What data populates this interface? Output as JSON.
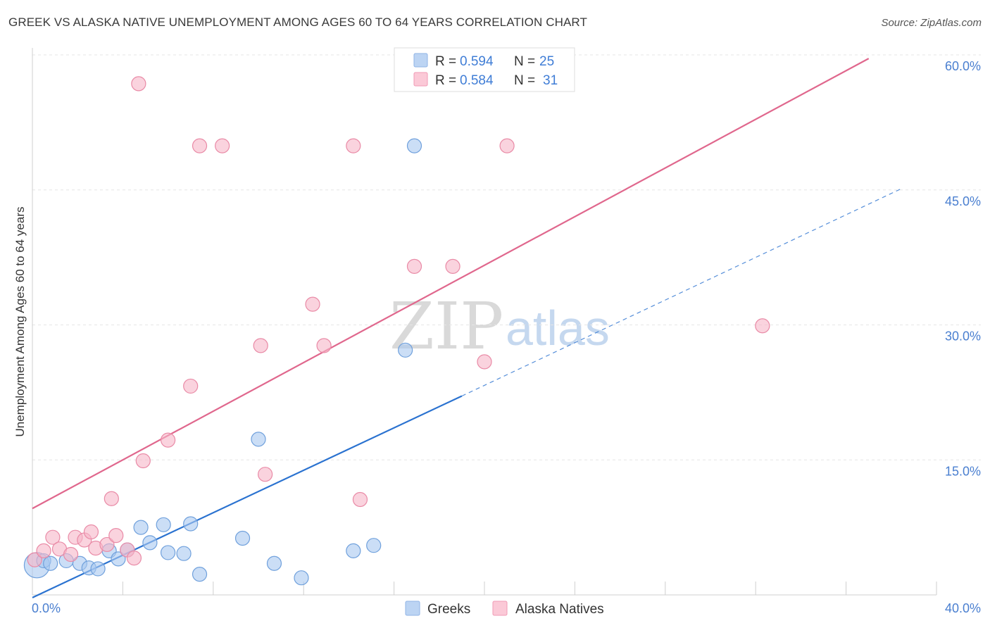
{
  "title": "GREEK VS ALASKA NATIVE UNEMPLOYMENT AMONG AGES 60 TO 64 YEARS CORRELATION CHART",
  "source": "Source: ZipAtlas.com",
  "watermark": {
    "zip": "ZIP",
    "atlas": "atlas"
  },
  "legend": {
    "rows": [
      {
        "r_label": "R =",
        "r_value": "0.594",
        "n_label": "N =",
        "n_value": "25",
        "color": "#a8c8f0"
      },
      {
        "r_label": "R =",
        "r_value": "0.584",
        "n_label": "N =",
        "n_value": "31",
        "color": "#f7b6c8"
      }
    ]
  },
  "bottom_legend": {
    "greeks": "Greeks",
    "alaska": "Alaska Natives"
  },
  "chart_data": {
    "type": "scatter",
    "title": "GREEK VS ALASKA NATIVE UNEMPLOYMENT AMONG AGES 60 TO 64 YEARS CORRELATION CHART",
    "xlabel": "",
    "ylabel": "Unemployment Among Ages 60 to 64 years",
    "xlim": [
      0,
      40
    ],
    "ylim": [
      0,
      60
    ],
    "x_tick_labels": [
      "0.0%",
      "40.0%"
    ],
    "y_ticks": [
      15,
      30,
      45,
      60
    ],
    "y_tick_labels": [
      "15.0%",
      "30.0%",
      "45.0%",
      "60.0%"
    ],
    "series": [
      {
        "name": "Greeks",
        "color": "#a8c8f0",
        "stroke": "#6fa0dc",
        "line_color": "#2a72d0",
        "regression": {
          "x0": 0,
          "y0": -0.3,
          "x1": 19,
          "y1": 22.1,
          "dash_x1": 38.5,
          "dash_y1": 45.2
        },
        "points": [
          [
            0.2,
            3.3,
            18
          ],
          [
            0.5,
            3.8,
            10
          ],
          [
            0.8,
            3.5,
            10
          ],
          [
            1.5,
            3.8,
            10
          ],
          [
            2.1,
            3.5,
            10
          ],
          [
            2.5,
            3.0,
            10
          ],
          [
            2.9,
            2.9,
            10
          ],
          [
            3.4,
            4.9,
            10
          ],
          [
            3.8,
            4.0,
            10
          ],
          [
            4.2,
            5.0,
            10
          ],
          [
            4.8,
            7.5,
            10
          ],
          [
            5.2,
            5.8,
            10
          ],
          [
            5.8,
            7.8,
            10
          ],
          [
            6.0,
            4.7,
            10
          ],
          [
            6.7,
            4.6,
            10
          ],
          [
            7.0,
            7.9,
            10
          ],
          [
            7.4,
            2.3,
            10
          ],
          [
            9.3,
            6.3,
            10
          ],
          [
            10.0,
            17.3,
            10
          ],
          [
            10.7,
            3.5,
            10
          ],
          [
            11.9,
            1.9,
            10
          ],
          [
            14.2,
            4.9,
            10
          ],
          [
            15.1,
            5.5,
            10
          ],
          [
            16.5,
            27.2,
            10
          ],
          [
            16.9,
            49.9,
            10
          ]
        ]
      },
      {
        "name": "Alaska Natives",
        "color": "#f7b6c8",
        "stroke": "#e98aa6",
        "line_color": "#e0678d",
        "regression": {
          "x0": 0,
          "y0": 9.6,
          "x1": 37.0,
          "y1": 59.6
        },
        "points": [
          [
            0.1,
            3.9,
            10
          ],
          [
            0.5,
            4.9,
            10
          ],
          [
            0.9,
            6.4,
            10
          ],
          [
            1.2,
            5.1,
            10
          ],
          [
            1.7,
            4.5,
            10
          ],
          [
            1.9,
            6.4,
            10
          ],
          [
            2.3,
            6.1,
            10
          ],
          [
            2.6,
            7.0,
            10
          ],
          [
            2.8,
            5.2,
            10
          ],
          [
            3.3,
            5.6,
            10
          ],
          [
            3.5,
            10.7,
            10
          ],
          [
            3.7,
            6.6,
            10
          ],
          [
            4.2,
            5.0,
            10
          ],
          [
            4.5,
            4.1,
            10
          ],
          [
            4.7,
            56.8,
            10
          ],
          [
            4.9,
            14.9,
            10
          ],
          [
            6.0,
            17.2,
            10
          ],
          [
            7.0,
            23.2,
            10
          ],
          [
            7.4,
            49.9,
            10
          ],
          [
            8.4,
            49.9,
            10
          ],
          [
            10.1,
            27.7,
            10
          ],
          [
            10.3,
            13.4,
            10
          ],
          [
            12.4,
            32.3,
            10
          ],
          [
            12.9,
            27.7,
            10
          ],
          [
            14.2,
            49.9,
            10
          ],
          [
            14.5,
            10.6,
            10
          ],
          [
            16.9,
            36.5,
            10
          ],
          [
            18.6,
            36.5,
            10
          ],
          [
            20.0,
            25.9,
            10
          ],
          [
            21.0,
            49.9,
            10
          ],
          [
            32.3,
            29.9,
            10
          ]
        ]
      }
    ]
  }
}
